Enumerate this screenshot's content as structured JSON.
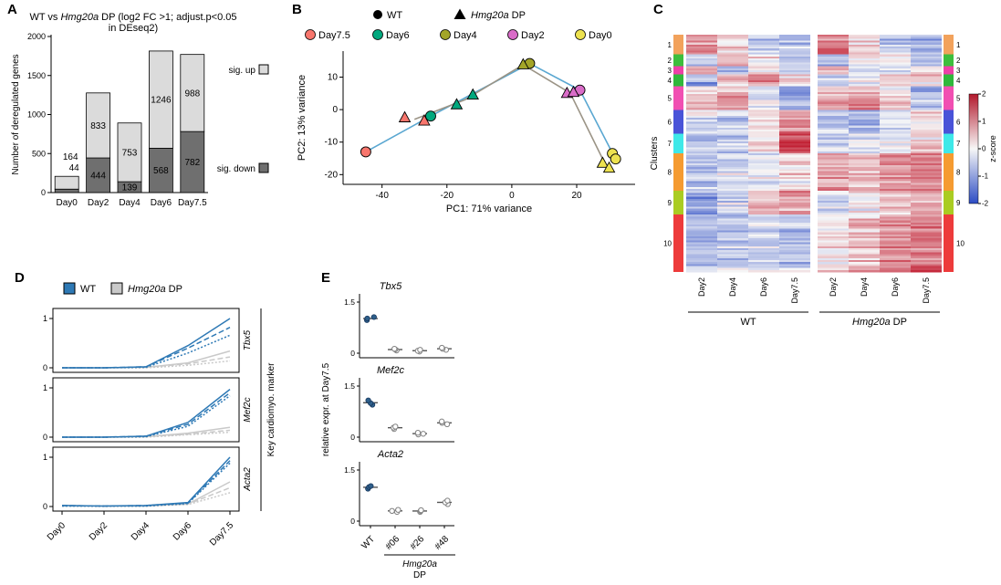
{
  "panels": {
    "A": "A",
    "B": "B",
    "C": "C",
    "D": "D",
    "E": "E"
  },
  "chart_data": [
    {
      "panel": "A",
      "type": "bar",
      "stacked": true,
      "title_parts1": [
        {
          "t": "WT vs ",
          "i": false
        },
        {
          "t": "Hmg20a",
          "i": true
        },
        {
          "t": " DP (log2 FC >1; adjust.p<0.05",
          "i": false
        }
      ],
      "title_line2": "in DEseq2)",
      "ylabel": "Number of deregulated genes",
      "categories": [
        "Day0",
        "Day2",
        "Day4",
        "Day6",
        "Day7.5"
      ],
      "series": [
        {
          "name": "sig. down",
          "values": [
            44,
            444,
            139,
            568,
            782
          ],
          "color": "#6f6f6f"
        },
        {
          "name": "sig. up",
          "values": [
            164,
            833,
            753,
            1246,
            988
          ],
          "color": "#dbdbdb"
        }
      ],
      "ylim": [
        0,
        2000
      ],
      "yticks": [
        0,
        500,
        1000,
        1500,
        2000
      ],
      "legend": [
        {
          "label": "sig. up",
          "fill": "#dbdbdb"
        },
        {
          "label": "sig. down",
          "fill": "#6f6f6f"
        }
      ]
    },
    {
      "panel": "B",
      "type": "scatter",
      "xlabel": "PC1: 71% variance",
      "ylabel": "PC2: 13% variance",
      "xlim": [
        -52,
        38
      ],
      "ylim": [
        -23,
        18
      ],
      "xticks": [
        -40,
        -20,
        0,
        20
      ],
      "yticks": [
        -20,
        -10,
        0,
        10
      ],
      "shape_legend": [
        {
          "label": "WT",
          "marker": "circle"
        },
        {
          "label_parts": [
            {
              "t": "Hmg20a",
              "i": true
            },
            {
              "t": " DP",
              "i": false
            }
          ],
          "marker": "triangle"
        }
      ],
      "days": [
        {
          "label": "Day7.5",
          "color": "#F8766D"
        },
        {
          "label": "Day6",
          "color": "#00A87E"
        },
        {
          "label": "Day4",
          "color": "#A3A528"
        },
        {
          "label": "Day2",
          "color": "#D96CC8"
        },
        {
          "label": "Day0",
          "color": "#EDE24F"
        }
      ],
      "series": [
        {
          "name": "WT",
          "marker": "circle",
          "points": [
            {
              "day": "Day7.5",
              "x": -45,
              "y": -13
            },
            {
              "day": "Day6",
              "x": -25,
              "y": -2
            },
            {
              "day": "Day4",
              "x": 5.5,
              "y": 14.2
            },
            {
              "day": "Day2",
              "x": 21,
              "y": 6
            },
            {
              "day": "Day0",
              "x": 31,
              "y": -13.5
            },
            {
              "day": "Day0",
              "x": 32,
              "y": -15.2
            }
          ]
        },
        {
          "name": "Hmg20a DP",
          "marker": "triangle",
          "points": [
            {
              "day": "Day7.5",
              "x": -33,
              "y": -2.5
            },
            {
              "day": "Day7.5",
              "x": -27,
              "y": -3.5
            },
            {
              "day": "Day6",
              "x": -17,
              "y": 1.5
            },
            {
              "day": "Day6",
              "x": -12,
              "y": 4.5
            },
            {
              "day": "Day4",
              "x": 3.5,
              "y": 13.8
            },
            {
              "day": "Day2",
              "x": 17,
              "y": 5
            },
            {
              "day": "Day2",
              "x": 19,
              "y": 5.3
            },
            {
              "day": "Day0",
              "x": 28,
              "y": -16.5
            },
            {
              "day": "Day0",
              "x": 30,
              "y": -18
            }
          ]
        }
      ],
      "paths": [
        {
          "name": "WT",
          "color": "#5AA7D1",
          "points": [
            [
              -45,
              -13
            ],
            [
              -25,
              -2
            ],
            [
              5.5,
              14.2
            ],
            [
              21,
              6
            ],
            [
              31.5,
              -14.3
            ]
          ]
        },
        {
          "name": "Hmg20a DP",
          "color": "#9B9486",
          "points": [
            [
              -30,
              -3
            ],
            [
              -14.5,
              3
            ],
            [
              3.5,
              13.8
            ],
            [
              18,
              5.1
            ],
            [
              29,
              -17.2
            ]
          ]
        }
      ]
    },
    {
      "panel": "C",
      "type": "heatmap",
      "row_axis_label": "Clusters",
      "columns": [
        "Day2",
        "Day4",
        "Day6",
        "Day7.5"
      ],
      "group_labels": [
        {
          "parts": [
            {
              "t": "WT",
              "i": false
            }
          ]
        },
        {
          "parts": [
            {
              "t": "Hmg20a",
              "i": true
            },
            {
              "t": " DP",
              "i": false
            }
          ]
        }
      ],
      "colorbar": {
        "label": "z-score",
        "ticks": [
          2,
          1,
          0,
          -1,
          -2
        ],
        "max_color": "#B2182B",
        "mid_color": "#F7F7F7",
        "min_color": "#2C4CC4"
      },
      "clusters": [
        {
          "id": 1,
          "color": "#F2A25C",
          "rows": 10,
          "wt": [
            1.1,
            0.2,
            -0.5,
            -0.7
          ],
          "dp": [
            1.3,
            0.4,
            -0.6,
            -0.9
          ]
        },
        {
          "id": 2,
          "color": "#3DBE3D",
          "rows": 6,
          "wt": [
            -0.5,
            0.9,
            0.4,
            -0.6
          ],
          "dp": [
            -0.7,
            0.2,
            0.1,
            -0.4
          ]
        },
        {
          "id": 3,
          "color": "#EE3FA8",
          "rows": 4,
          "wt": [
            0.8,
            -0.8,
            0.3,
            -0.3
          ],
          "dp": [
            1.0,
            -0.4,
            -0.2,
            0.3
          ]
        },
        {
          "id": 4,
          "color": "#2FB83B",
          "rows": 6,
          "wt": [
            -1.0,
            0.5,
            0.9,
            0.2
          ],
          "dp": [
            -0.6,
            -0.2,
            0.4,
            0.3
          ]
        },
        {
          "id": 5,
          "color": "#F14FB2",
          "rows": 12,
          "wt": [
            0.3,
            0.8,
            -0.2,
            -1.0
          ],
          "dp": [
            0.6,
            0.9,
            0.2,
            -0.7
          ]
        },
        {
          "id": 6,
          "color": "#4953D8",
          "rows": 12,
          "wt": [
            -0.2,
            -0.5,
            0.4,
            1.1
          ],
          "dp": [
            -0.5,
            -0.8,
            -0.2,
            0.3
          ]
        },
        {
          "id": 7,
          "color": "#3FE8E8",
          "rows": 10,
          "wt": [
            -0.8,
            -0.6,
            0.2,
            1.8
          ],
          "dp": [
            -0.6,
            -0.4,
            -0.2,
            0.4
          ]
        },
        {
          "id": 8,
          "color": "#F59B31",
          "rows": 19,
          "wt": [
            -0.6,
            -0.4,
            -0.2,
            0.2
          ],
          "dp": [
            0.8,
            0.6,
            1.0,
            1.2
          ]
        },
        {
          "id": 9,
          "color": "#AACC22",
          "rows": 12,
          "wt": [
            -1.1,
            -0.4,
            0.5,
            0.8
          ],
          "dp": [
            -0.2,
            0.2,
            0.5,
            0.8
          ]
        },
        {
          "id": 10,
          "color": "#ED3B3B",
          "rows": 29,
          "wt": [
            -0.8,
            -0.6,
            -0.4,
            -0.6
          ],
          "dp": [
            0.2,
            0.6,
            1.0,
            1.3
          ]
        }
      ]
    },
    {
      "panel": "D",
      "type": "line",
      "legend": [
        {
          "label": "WT",
          "color": "#2E79B5",
          "label_parts": [
            {
              "t": "WT",
              "i": false
            }
          ]
        },
        {
          "label": "Hmg20a DP",
          "color": "#C9C9C9",
          "label_parts": [
            {
              "t": "Hmg20a",
              "i": true
            },
            {
              "t": " DP",
              "i": false
            }
          ]
        }
      ],
      "categories": [
        "Day0",
        "Day2",
        "Day4",
        "Day6",
        "Day7.5"
      ],
      "yticks": [
        0,
        1
      ],
      "right_label": "Key cardiomyo. marker",
      "genes": [
        {
          "name": "Tbx5",
          "wt": [
            [
              0,
              0,
              0.02,
              0.45,
              1.0
            ],
            [
              0,
              0,
              0.02,
              0.4,
              0.82
            ],
            [
              0,
              0,
              0.01,
              0.3,
              0.66
            ]
          ],
          "dp": [
            [
              0,
              0,
              0.01,
              0.1,
              0.34
            ],
            [
              0,
              0,
              0.01,
              0.08,
              0.22
            ],
            [
              0,
              0,
              0,
              0.05,
              0.14
            ]
          ]
        },
        {
          "name": "Mef2c",
          "wt": [
            [
              0,
              0,
              0.02,
              0.3,
              0.97
            ],
            [
              0,
              0,
              0.02,
              0.26,
              0.9
            ],
            [
              0,
              0,
              0.01,
              0.22,
              0.84
            ]
          ],
          "dp": [
            [
              0,
              0,
              0.01,
              0.08,
              0.2
            ],
            [
              0,
              0,
              0.01,
              0.06,
              0.14
            ],
            [
              0,
              0,
              0,
              0.05,
              0.1
            ]
          ]
        },
        {
          "name": "Acta2",
          "wt": [
            [
              0.02,
              0.01,
              0.02,
              0.08,
              1.0
            ],
            [
              0.02,
              0.01,
              0.02,
              0.07,
              0.93
            ],
            [
              0.01,
              0.01,
              0.01,
              0.06,
              0.88
            ]
          ],
          "dp": [
            [
              0.02,
              0.01,
              0.01,
              0.05,
              0.5
            ],
            [
              0.01,
              0.01,
              0.01,
              0.05,
              0.38
            ],
            [
              0.01,
              0,
              0.01,
              0.04,
              0.28
            ]
          ]
        }
      ]
    },
    {
      "panel": "E",
      "type": "dotplot",
      "ylabel": "relative expr. at Day7.5",
      "ymax": 1.5,
      "yticks": [
        0,
        1.5
      ],
      "groups": [
        "WT",
        "#06",
        "#26",
        "#48"
      ],
      "bottom_label_parts": [
        {
          "t": "Hmg20a",
          "i": true
        }
      ],
      "bottom_label2": "DP",
      "wt_color": "#2E5F8A",
      "clone_stroke": "#808080",
      "genes": [
        {
          "name": "Tbx5",
          "values": [
            [
              0.97,
              1.02,
              1.06
            ],
            [
              0.08,
              0.11,
              0.13
            ],
            [
              0.05,
              0.07,
              0.1
            ],
            [
              0.1,
              0.13,
              0.16
            ]
          ]
        },
        {
          "name": "Mef2c",
          "values": [
            [
              0.95,
              1.0,
              1.08
            ],
            [
              0.24,
              0.28,
              0.31
            ],
            [
              0.08,
              0.1,
              0.13
            ],
            [
              0.38,
              0.42,
              0.46
            ]
          ]
        },
        {
          "name": "Acta2",
          "values": [
            [
              0.95,
              1.0,
              1.03
            ],
            [
              0.27,
              0.3,
              0.33
            ],
            [
              0.27,
              0.3,
              0.32
            ],
            [
              0.5,
              0.55,
              0.6
            ]
          ]
        }
      ]
    }
  ]
}
